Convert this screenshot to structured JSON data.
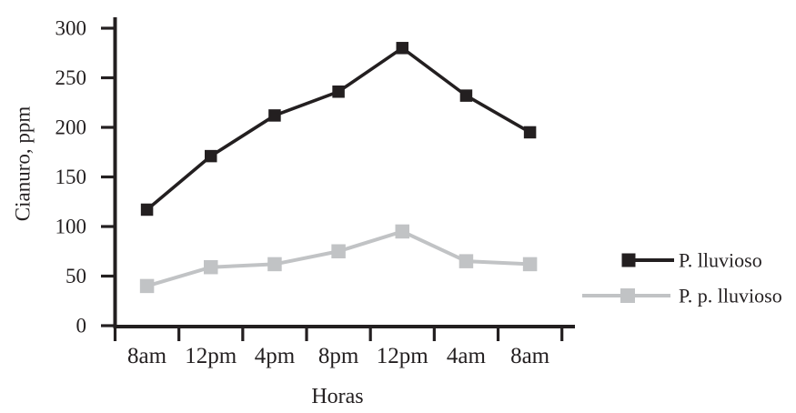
{
  "colors": {
    "text": "#231f20",
    "background": "#ffffff",
    "series_dark": "#231f20",
    "series_light": "#c1c3c5"
  },
  "chart_data": {
    "type": "line",
    "title": "",
    "xlabel": "Horas",
    "ylabel": "Cianuro, ppm",
    "categories": [
      "8am",
      "12pm",
      "4pm",
      "8pm",
      "12pm",
      "4am",
      "8am"
    ],
    "series": [
      {
        "name": "P. lluvioso",
        "color": "#231f20",
        "marker": "square",
        "values": [
          117,
          171,
          212,
          236,
          280,
          232,
          195
        ]
      },
      {
        "name": "P. p. lluvioso",
        "color": "#c1c3c5",
        "marker": "square",
        "values": [
          40,
          59,
          62,
          75,
          95,
          65,
          62
        ]
      }
    ],
    "ylim": [
      0,
      300
    ],
    "yticks": [
      0,
      50,
      100,
      150,
      200,
      250,
      300
    ],
    "grid": false,
    "legend_position": "right-middle"
  }
}
